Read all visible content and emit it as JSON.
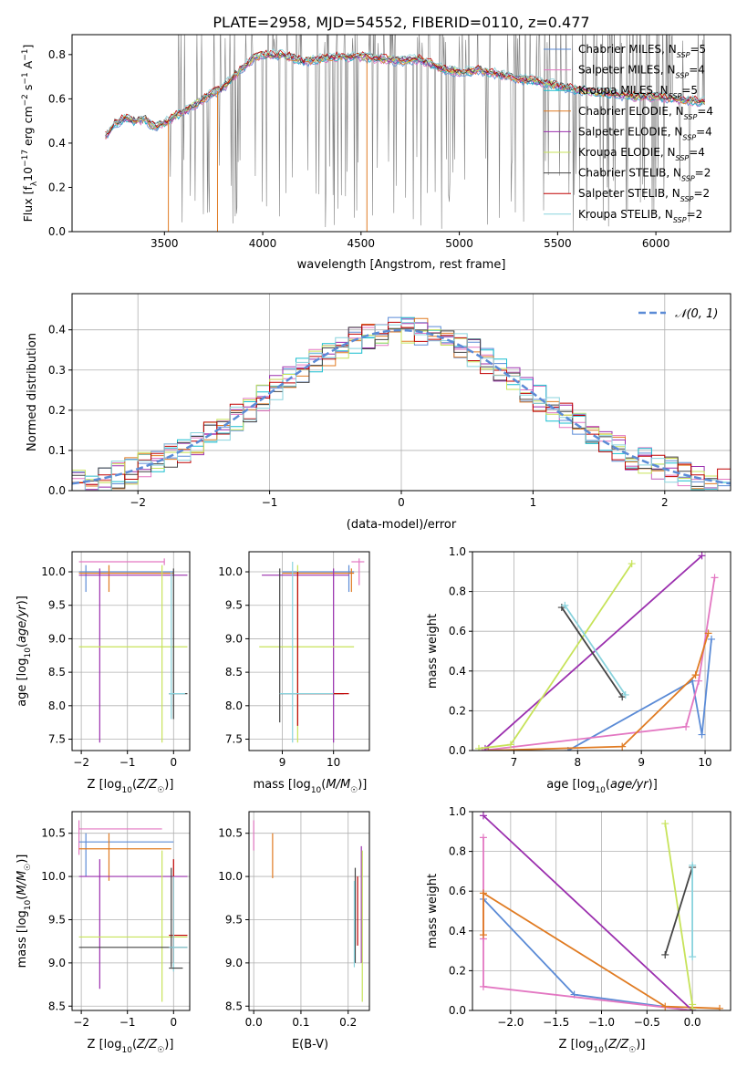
{
  "figure": {
    "title": "PLATE=2958, MJD=54552, FIBERID=0110, z=0.477"
  },
  "palette": {
    "chabrier_miles": "#5b8bd6",
    "salpeter_miles": "#e377c2",
    "kroupa_miles": "#17becf",
    "chabrier_elodie": "#e07b22",
    "salpeter_elodie": "#9b2fae",
    "kroupa_elodie": "#c7e35a",
    "chabrier_stelib": "#444444",
    "salpeter_stelib": "#c00000",
    "kroupa_stelib": "#89d3dd",
    "data": "#7f7f7f",
    "grid": "#b0b0b0"
  },
  "chart_data": [
    {
      "id": "spectrum",
      "type": "line",
      "title": "PLATE=2958, MJD=54552, FIBERID=0110, z=0.477",
      "xlabel": "wavelength [Angstrom, rest frame]",
      "ylabel": "Flux [f_λ 10^-17 erg cm^-2 s^-1 A^-1]",
      "xlim": [
        3030,
        6380
      ],
      "ylim": [
        0,
        0.89
      ],
      "xticks": [
        3500,
        4000,
        4500,
        5000,
        5500,
        6000
      ],
      "yticks": [
        0.0,
        0.2,
        0.4,
        0.6,
        0.8
      ],
      "grid": false,
      "legend_position": "top-right",
      "legend": [
        "Chabrier MILES, N_SSP=5",
        "Salpeter MILES, N_SSP=4",
        "Kroupa MILES, N_SSP=5",
        "Chabrier ELODIE, N_SSP=4",
        "Salpeter ELODIE, N_SSP=4",
        "Kroupa ELODIE, N_SSP=4",
        "Chabrier STELIB, N_SSP=2",
        "Salpeter STELIB, N_SSP=2",
        "Kroupa STELIB, N_SSP=2"
      ],
      "model_x": [
        3200,
        3250,
        3300,
        3350,
        3400,
        3450,
        3500,
        3550,
        3600,
        3700,
        3800,
        3850,
        3900,
        3950,
        4000,
        4100,
        4200,
        4300,
        4400,
        4500,
        4600,
        4700,
        4800,
        4900,
        5000,
        5100,
        5200,
        5300,
        5400,
        5500,
        5600,
        5700,
        5800,
        5900,
        6000,
        6100,
        6200
      ],
      "model_y": [
        0.43,
        0.49,
        0.51,
        0.5,
        0.51,
        0.47,
        0.49,
        0.52,
        0.54,
        0.6,
        0.65,
        0.7,
        0.74,
        0.78,
        0.8,
        0.8,
        0.77,
        0.78,
        0.79,
        0.79,
        0.78,
        0.77,
        0.78,
        0.74,
        0.72,
        0.73,
        0.71,
        0.69,
        0.68,
        0.66,
        0.64,
        0.63,
        0.62,
        0.61,
        0.61,
        0.6,
        0.59
      ],
      "noise_start": 3520,
      "noise_end": 6250
    },
    {
      "id": "residuals",
      "type": "histogram",
      "xlabel": "(data-model)/error",
      "ylabel": "Normed distribution",
      "xlim": [
        -2.5,
        2.5
      ],
      "ylim": [
        0,
        0.49
      ],
      "xticks": [
        -2,
        -1,
        0,
        1,
        2
      ],
      "yticks": [
        0.0,
        0.1,
        0.2,
        0.3,
        0.4
      ],
      "grid": true,
      "legend_position": "top-right",
      "legend": [
        "𝒩(0, 1)"
      ],
      "bin_width": 0.1
    },
    {
      "id": "age-vs-z",
      "type": "errorbar",
      "xlabel": "Z [log10(Z/Z☉)]",
      "ylabel": "age  [log10(age/yr)]",
      "xlim": [
        -2.2,
        0.35
      ],
      "ylim": [
        7.33,
        10.3
      ],
      "xticks": [
        -2,
        -1,
        0
      ],
      "yticks": [
        7.5,
        8.0,
        8.5,
        9.0,
        9.5,
        10.0
      ],
      "grid": true
    },
    {
      "id": "mass-vs-z",
      "type": "errorbar",
      "xlabel": "mass [log10(M/M☉)]",
      "ylabel": "",
      "xlim": [
        8.35,
        10.7
      ],
      "ylim": [
        7.33,
        10.3
      ],
      "xticks": [
        9,
        10
      ],
      "yticks": [
        7.5,
        8.0,
        8.5,
        9.0,
        9.5,
        10.0
      ],
      "grid": true
    },
    {
      "id": "weight-vs-age",
      "type": "line",
      "xlabel": "age  [log10(age/yr)]",
      "ylabel": "mass weight",
      "xlim": [
        6.35,
        10.4
      ],
      "ylim": [
        0,
        1.0
      ],
      "xticks": [
        7,
        8,
        9,
        10
      ],
      "yticks": [
        0.0,
        0.2,
        0.4,
        0.6,
        0.8,
        1.0
      ],
      "grid": true,
      "series": [
        {
          "color_key": "chabrier_miles",
          "x": [
            7.85,
            9.8,
            9.95,
            10.1
          ],
          "y": [
            0.0,
            0.35,
            0.08,
            0.56
          ]
        },
        {
          "color_key": "salpeter_miles",
          "x": [
            6.5,
            9.7,
            9.9,
            10.15
          ],
          "y": [
            0.0,
            0.12,
            0.35,
            0.87
          ]
        },
        {
          "color_key": "chabrier_elodie",
          "x": [
            6.6,
            8.7,
            9.85,
            10.05
          ],
          "y": [
            0.0,
            0.02,
            0.38,
            0.59
          ]
        },
        {
          "color_key": "salpeter_elodie",
          "x": [
            6.55,
            9.95
          ],
          "y": [
            0.01,
            0.98
          ]
        },
        {
          "color_key": "kroupa_elodie",
          "x": [
            6.45,
            6.95,
            8.85
          ],
          "y": [
            0.01,
            0.03,
            0.94
          ]
        },
        {
          "color_key": "chabrier_stelib",
          "x": [
            7.75,
            8.7
          ],
          "y": [
            0.72,
            0.27
          ]
        },
        {
          "color_key": "kroupa_stelib",
          "x": [
            7.8,
            8.75
          ],
          "y": [
            0.73,
            0.28
          ]
        }
      ]
    },
    {
      "id": "mass-vs-z-lower",
      "type": "errorbar",
      "xlabel": "Z [log10(Z/Z☉)]",
      "ylabel": "mass [log10(M/M☉)]",
      "xlim": [
        -2.2,
        0.35
      ],
      "ylim": [
        8.45,
        10.75
      ],
      "xticks": [
        -2,
        -1,
        0
      ],
      "yticks": [
        8.5,
        9.0,
        9.5,
        10.0,
        10.5
      ],
      "grid": true
    },
    {
      "id": "mass-vs-ebv",
      "type": "errorbar",
      "xlabel": "E(B-V)",
      "ylabel": "",
      "xlim": [
        -0.01,
        0.245
      ],
      "ylim": [
        8.45,
        10.75
      ],
      "xticks": [
        0.0,
        0.1,
        0.2
      ],
      "yticks": [
        8.5,
        9.0,
        9.5,
        10.0,
        10.5
      ],
      "grid": true
    },
    {
      "id": "weight-vs-z",
      "type": "line",
      "xlabel": "Z [log10(Z/Z☉)]",
      "ylabel": "mass weight",
      "xlim": [
        -2.42,
        0.42
      ],
      "ylim": [
        0,
        1.0
      ],
      "xticks": [
        -2.0,
        -1.5,
        -1.0,
        -0.5,
        0.0
      ],
      "yticks": [
        0.0,
        0.2,
        0.4,
        0.6,
        0.8,
        1.0
      ],
      "grid": true,
      "series": [
        {
          "color_key": "chabrier_miles",
          "x": [
            -2.3,
            -1.3,
            0.0
          ],
          "y": [
            0.56,
            0.08,
            0.0
          ]
        },
        {
          "color_key": "salpeter_miles",
          "x": [
            -2.3,
            -2.3,
            -2.3,
            0.0
          ],
          "y": [
            0.87,
            0.36,
            0.12,
            0.0
          ]
        },
        {
          "color_key": "chabrier_elodie",
          "x": [
            -2.3,
            -2.3,
            -0.3,
            0.3
          ],
          "y": [
            0.38,
            0.59,
            0.02,
            0.01
          ]
        },
        {
          "color_key": "salpeter_elodie",
          "x": [
            -2.3,
            0.0
          ],
          "y": [
            0.98,
            0.0
          ]
        },
        {
          "color_key": "kroupa_elodie",
          "x": [
            -0.3,
            0.0,
            0.0
          ],
          "y": [
            0.94,
            0.03,
            0.01
          ]
        },
        {
          "color_key": "chabrier_stelib",
          "x": [
            -0.3,
            0.0
          ],
          "y": [
            0.28,
            0.72
          ]
        },
        {
          "color_key": "kroupa_stelib",
          "x": [
            0.0,
            0.0
          ],
          "y": [
            0.27,
            0.73
          ]
        }
      ]
    }
  ]
}
